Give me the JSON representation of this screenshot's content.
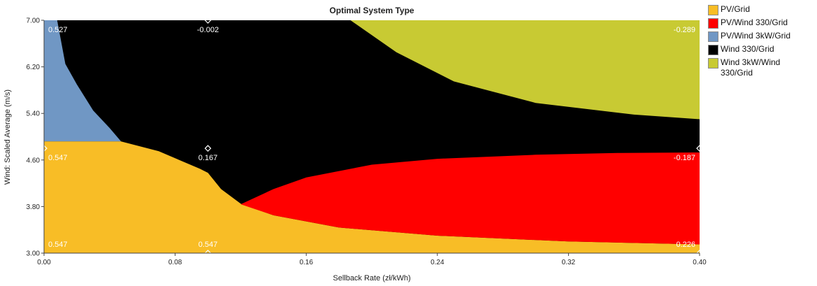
{
  "chart_data": {
    "type": "area",
    "title": "Optimal System Type",
    "xlabel": "Sellback Rate (zł/kWh)",
    "ylabel": "Wind: Scaled Average (m/s)",
    "xlim": [
      0.0,
      0.4
    ],
    "ylim": [
      3.0,
      7.0
    ],
    "x_ticks": [
      "0.00",
      "0.08",
      "0.16",
      "0.24",
      "0.32",
      "0.40"
    ],
    "y_ticks": [
      "3.00",
      "3.80",
      "4.60",
      "5.40",
      "6.20",
      "7.00"
    ],
    "grid": false,
    "legend_position": "right",
    "series": [
      {
        "name": "PV/Grid",
        "color": "#f8bd26"
      },
      {
        "name": "PV/Wind 330/Grid",
        "color": "#ff0000"
      },
      {
        "name": "PV/Wind 3kW/Grid",
        "color": "#7097c4"
      },
      {
        "name": "Wind 330/Grid",
        "color": "#000000"
      },
      {
        "name": "Wind 3kW/Wind 330/Grid",
        "color": "#c8ca33"
      }
    ],
    "background_color": "#000000",
    "regions": [
      {
        "series": "PV/Wind 3kW/Grid",
        "points": [
          [
            0.0,
            7.0
          ],
          [
            0.008,
            7.0
          ],
          [
            0.013,
            6.25
          ],
          [
            0.02,
            5.9
          ],
          [
            0.03,
            5.45
          ],
          [
            0.04,
            5.15
          ],
          [
            0.047,
            4.92
          ],
          [
            0.0,
            4.92
          ]
        ]
      },
      {
        "series": "PV/Grid",
        "points": [
          [
            0.0,
            4.92
          ],
          [
            0.047,
            4.92
          ],
          [
            0.07,
            4.75
          ],
          [
            0.095,
            4.45
          ],
          [
            0.1,
            4.38
          ],
          [
            0.108,
            4.1
          ],
          [
            0.12,
            3.85
          ],
          [
            0.14,
            3.65
          ],
          [
            0.18,
            3.44
          ],
          [
            0.24,
            3.3
          ],
          [
            0.32,
            3.2
          ],
          [
            0.4,
            3.15
          ],
          [
            0.4,
            3.0
          ],
          [
            0.0,
            3.0
          ]
        ]
      },
      {
        "series": "PV/Wind 330/Grid",
        "points": [
          [
            0.12,
            3.84
          ],
          [
            0.14,
            4.1
          ],
          [
            0.16,
            4.3
          ],
          [
            0.2,
            4.52
          ],
          [
            0.24,
            4.62
          ],
          [
            0.3,
            4.69
          ],
          [
            0.35,
            4.72
          ],
          [
            0.4,
            4.73
          ],
          [
            0.4,
            3.15
          ],
          [
            0.32,
            3.2
          ],
          [
            0.24,
            3.3
          ],
          [
            0.18,
            3.44
          ],
          [
            0.14,
            3.65
          ],
          [
            0.12,
            3.84
          ]
        ]
      },
      {
        "series": "Wind 3kW/Wind 330/Grid",
        "points": [
          [
            0.187,
            7.0
          ],
          [
            0.4,
            7.0
          ],
          [
            0.4,
            5.3
          ],
          [
            0.36,
            5.38
          ],
          [
            0.3,
            5.58
          ],
          [
            0.25,
            5.95
          ],
          [
            0.215,
            6.45
          ],
          [
            0.187,
            7.0
          ]
        ]
      }
    ],
    "annotations": [
      {
        "x": 0.0,
        "y": 7.0,
        "text": "0.527",
        "color": "#ffffff",
        "align": "start",
        "marker": false
      },
      {
        "x": 0.1,
        "y": 7.0,
        "text": "-0.002",
        "color": "#ffffff",
        "align": "middle",
        "marker": true
      },
      {
        "x": 0.4,
        "y": 7.0,
        "text": "-0.289",
        "color": "#ffffff",
        "align": "end",
        "marker": false
      },
      {
        "x": 0.0,
        "y": 4.8,
        "text": "0.547",
        "color": "#ffffff",
        "align": "start",
        "marker": true
      },
      {
        "x": 0.1,
        "y": 4.8,
        "text": "0.167",
        "color": "#ffffff",
        "align": "middle",
        "marker": true
      },
      {
        "x": 0.4,
        "y": 4.8,
        "text": "-0.187",
        "color": "#ffffff",
        "align": "end",
        "marker": true
      },
      {
        "x": 0.0,
        "y": 3.0,
        "text": "0.547",
        "color": "#ffffff",
        "align": "start",
        "marker": false
      },
      {
        "x": 0.1,
        "y": 3.0,
        "text": "0.547",
        "color": "#ffffff",
        "align": "middle",
        "marker": true
      },
      {
        "x": 0.4,
        "y": 3.0,
        "text": "0.226",
        "color": "#ffffff",
        "align": "end",
        "marker": true
      }
    ]
  }
}
